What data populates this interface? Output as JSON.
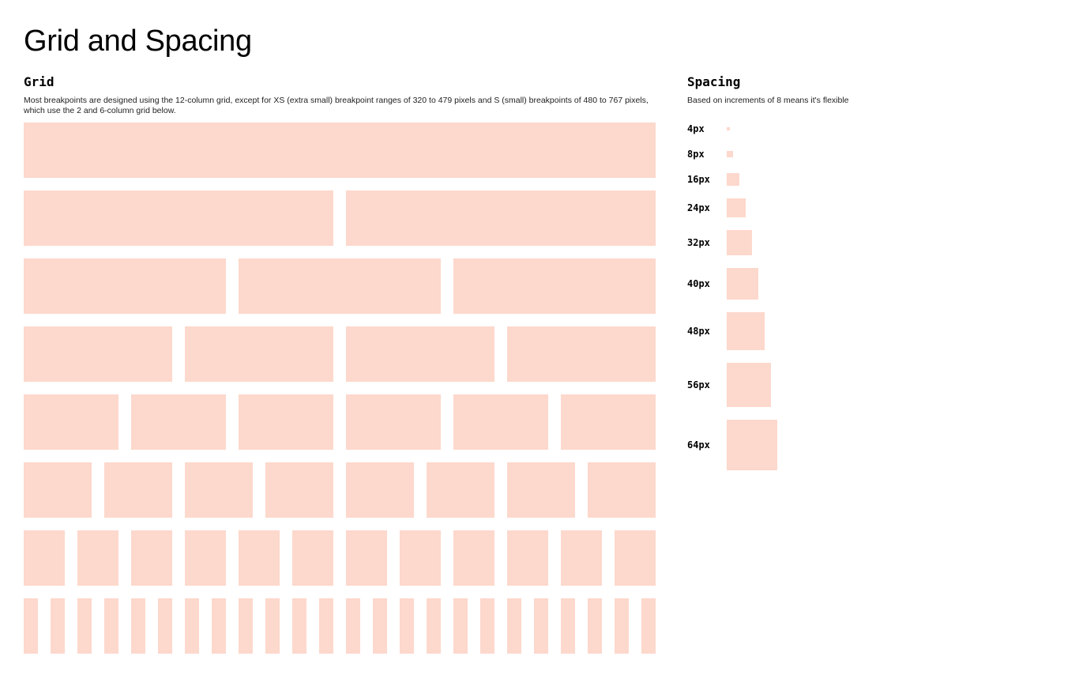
{
  "page": {
    "title": "Grid and Spacing"
  },
  "grid": {
    "heading": "Grid",
    "description": "Most breakpoints are designed using the 12-column grid, except for XS (extra small) breakpoint ranges of 320 to 479 pixels and S (small) breakpoints of 480 to 767 pixels, which use the 2 and 6-column grid below.",
    "swatch_color": "#fdd8cc",
    "column_counts": [
      1,
      2,
      3,
      4,
      6,
      8,
      12,
      24
    ]
  },
  "spacing": {
    "heading": "Spacing",
    "description": "Based on increments of 8 means it's flexible",
    "swatch_color": "#fdd8cc",
    "items": [
      {
        "label": "4px",
        "value": 4
      },
      {
        "label": "8px",
        "value": 8
      },
      {
        "label": "16px",
        "value": 16
      },
      {
        "label": "24px",
        "value": 24
      },
      {
        "label": "32px",
        "value": 32
      },
      {
        "label": "40px",
        "value": 40
      },
      {
        "label": "48px",
        "value": 48
      },
      {
        "label": "56px",
        "value": 56
      },
      {
        "label": "64px",
        "value": 64
      }
    ]
  }
}
